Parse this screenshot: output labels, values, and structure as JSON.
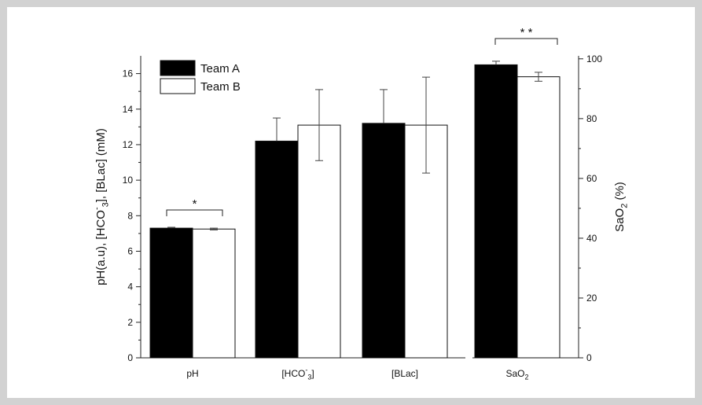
{
  "chart_data": {
    "type": "bar",
    "groups_left": [
      "pH",
      "[HCO3-]",
      "[BLac]"
    ],
    "group_right": "SaO2",
    "series": [
      {
        "name": "Team A",
        "color": "#000000",
        "left_values": [
          7.3,
          12.2,
          13.2
        ],
        "left_errors": [
          0.05,
          1.3,
          1.9
        ],
        "right_value": 98,
        "right_error": 1.2
      },
      {
        "name": "Team B",
        "color": "#ffffff",
        "left_values": [
          7.25,
          13.1,
          13.1
        ],
        "left_errors": [
          0.05,
          2.0,
          2.7
        ],
        "right_value": 94,
        "right_error": 1.5
      }
    ],
    "ylabel_left": "pH(a.u), [HCO3-], [BLac] (mM)",
    "ylabel_right": "SaO2 (%)",
    "ylim_left": [
      0,
      17
    ],
    "yticks_left": [
      0,
      2,
      4,
      6,
      8,
      10,
      12,
      14,
      16
    ],
    "ylim_right": [
      0,
      101
    ],
    "yticks_right": [
      0,
      20,
      40,
      60,
      80,
      100
    ],
    "legend_position": "top-left",
    "significance": [
      {
        "group": "pH",
        "label": "*"
      },
      {
        "group": "SaO2",
        "label": "* *"
      }
    ]
  }
}
